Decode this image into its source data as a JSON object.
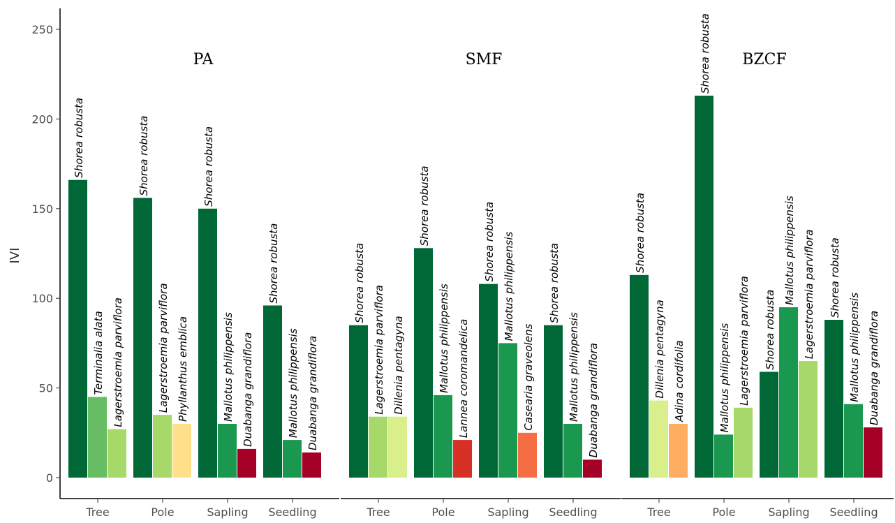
{
  "chart_data": {
    "type": "bar",
    "ylabel": "IVI",
    "ylim": [
      0,
      260
    ],
    "yticks": [
      0,
      50,
      100,
      150,
      200,
      250
    ],
    "grid": false,
    "colors": {
      "Shorea robusta": "#006837",
      "Mallotus philippensis": "#1a9850",
      "Terminalia alata": "#66bd63",
      "Lagerstroemia parviflora": "#a6d96a",
      "Dillenia pentagyna": "#d9ef8b",
      "Phyllanthus emblica": "#fee08b",
      "Adina cordifolia": "#fdae61",
      "Casearia graveolens": "#f46d43",
      "Lannea coromandelica": "#d73027",
      "Duabanga grandiflora": "#a50026"
    },
    "panels": [
      {
        "title": "PA",
        "groups": [
          {
            "category": "Tree",
            "bars": [
              {
                "species": "Shorea robusta",
                "value": 166
              },
              {
                "species": "Terminalia alata",
                "value": 45
              },
              {
                "species": "Lagerstroemia parviflora",
                "value": 27
              }
            ]
          },
          {
            "category": "Pole",
            "bars": [
              {
                "species": "Shorea robusta",
                "value": 156
              },
              {
                "species": "Lagerstroemia parviflora",
                "value": 35
              },
              {
                "species": "Phyllanthus emblica",
                "value": 30
              }
            ]
          },
          {
            "category": "Sapling",
            "bars": [
              {
                "species": "Shorea robusta",
                "value": 150
              },
              {
                "species": "Mallotus philippensis",
                "value": 30
              },
              {
                "species": "Duabanga grandiflora",
                "value": 16
              }
            ]
          },
          {
            "category": "Seedling",
            "bars": [
              {
                "species": "Shorea robusta",
                "value": 96
              },
              {
                "species": "Mallotus philippensis",
                "value": 21
              },
              {
                "species": "Duabanga grandiflora",
                "value": 14
              }
            ]
          }
        ]
      },
      {
        "title": "SMF",
        "groups": [
          {
            "category": "Tree",
            "bars": [
              {
                "species": "Shorea robusta",
                "value": 85
              },
              {
                "species": "Lagerstroemia parviflora",
                "value": 34
              },
              {
                "species": "Dillenia pentagyna",
                "value": 34
              }
            ]
          },
          {
            "category": "Pole",
            "bars": [
              {
                "species": "Shorea robusta",
                "value": 128
              },
              {
                "species": "Mallotus philippensis",
                "value": 46
              },
              {
                "species": "Lannea coromandelica",
                "value": 21
              }
            ]
          },
          {
            "category": "Sapling",
            "bars": [
              {
                "species": "Shorea robusta",
                "value": 108
              },
              {
                "species": "Mallotus philippensis",
                "value": 75
              },
              {
                "species": "Casearia graveolens",
                "value": 25
              }
            ]
          },
          {
            "category": "Seedling",
            "bars": [
              {
                "species": "Shorea robusta",
                "value": 85
              },
              {
                "species": "Mallotus philippensis",
                "value": 30
              },
              {
                "species": "Duabanga grandiflora",
                "value": 10
              }
            ]
          }
        ]
      },
      {
        "title": "BZCF",
        "groups": [
          {
            "category": "Tree",
            "bars": [
              {
                "species": "Shorea robusta",
                "value": 113
              },
              {
                "species": "Dillenia pentagyna",
                "value": 43
              },
              {
                "species": "Adina cordifolia",
                "value": 30
              }
            ]
          },
          {
            "category": "Pole",
            "bars": [
              {
                "species": "Shorea robusta",
                "value": 213
              },
              {
                "species": "Mallotus philippensis",
                "value": 24
              },
              {
                "species": "Lagerstroemia parviflora",
                "value": 39
              }
            ]
          },
          {
            "category": "Sapling",
            "bars": [
              {
                "species": "Shorea robusta",
                "value": 59
              },
              {
                "species": "Mallotus philippensis",
                "value": 95
              },
              {
                "species": "Lagerstroemia parviflora",
                "value": 65
              }
            ]
          },
          {
            "category": "Seedling",
            "bars": [
              {
                "species": "Shorea robusta",
                "value": 88
              },
              {
                "species": "Mallotus philippensis",
                "value": 41
              },
              {
                "species": "Duabanga grandiflora",
                "value": 28
              }
            ]
          }
        ]
      }
    ]
  }
}
